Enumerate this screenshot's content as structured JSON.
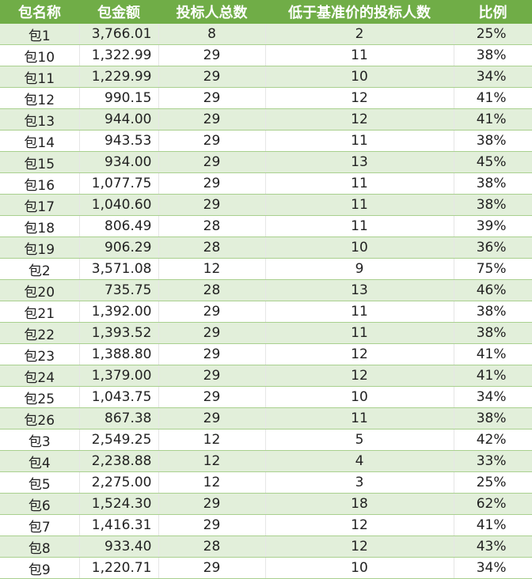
{
  "table": {
    "headers": [
      "包名称",
      "包金额",
      "投标人总数",
      "低于基准价的投标人数",
      "比例"
    ],
    "rows": [
      [
        "包1",
        "3,766.01",
        "8",
        "2",
        "25%"
      ],
      [
        "包10",
        "1,322.99",
        "29",
        "11",
        "38%"
      ],
      [
        "包11",
        "1,229.99",
        "29",
        "10",
        "34%"
      ],
      [
        "包12",
        "990.15",
        "29",
        "12",
        "41%"
      ],
      [
        "包13",
        "944.00",
        "29",
        "12",
        "41%"
      ],
      [
        "包14",
        "943.53",
        "29",
        "11",
        "38%"
      ],
      [
        "包15",
        "934.00",
        "29",
        "13",
        "45%"
      ],
      [
        "包16",
        "1,077.75",
        "29",
        "11",
        "38%"
      ],
      [
        "包17",
        "1,040.60",
        "29",
        "11",
        "38%"
      ],
      [
        "包18",
        "806.49",
        "28",
        "11",
        "39%"
      ],
      [
        "包19",
        "906.29",
        "28",
        "10",
        "36%"
      ],
      [
        "包2",
        "3,571.08",
        "12",
        "9",
        "75%"
      ],
      [
        "包20",
        "735.75",
        "28",
        "13",
        "46%"
      ],
      [
        "包21",
        "1,392.00",
        "29",
        "11",
        "38%"
      ],
      [
        "包22",
        "1,393.52",
        "29",
        "11",
        "38%"
      ],
      [
        "包23",
        "1,388.80",
        "29",
        "12",
        "41%"
      ],
      [
        "包24",
        "1,379.00",
        "29",
        "12",
        "41%"
      ],
      [
        "包25",
        "1,043.75",
        "29",
        "10",
        "34%"
      ],
      [
        "包26",
        "867.38",
        "29",
        "11",
        "38%"
      ],
      [
        "包3",
        "2,549.25",
        "12",
        "5",
        "42%"
      ],
      [
        "包4",
        "2,238.88",
        "12",
        "4",
        "33%"
      ],
      [
        "包5",
        "2,275.00",
        "12",
        "3",
        "25%"
      ],
      [
        "包6",
        "1,524.30",
        "29",
        "18",
        "62%"
      ],
      [
        "包7",
        "1,416.31",
        "29",
        "12",
        "41%"
      ],
      [
        "包8",
        "933.40",
        "28",
        "12",
        "43%"
      ],
      [
        "包9",
        "1,220.71",
        "29",
        "10",
        "34%"
      ]
    ]
  },
  "colors": {
    "header": "#70ad47",
    "band": "#e2efda"
  }
}
